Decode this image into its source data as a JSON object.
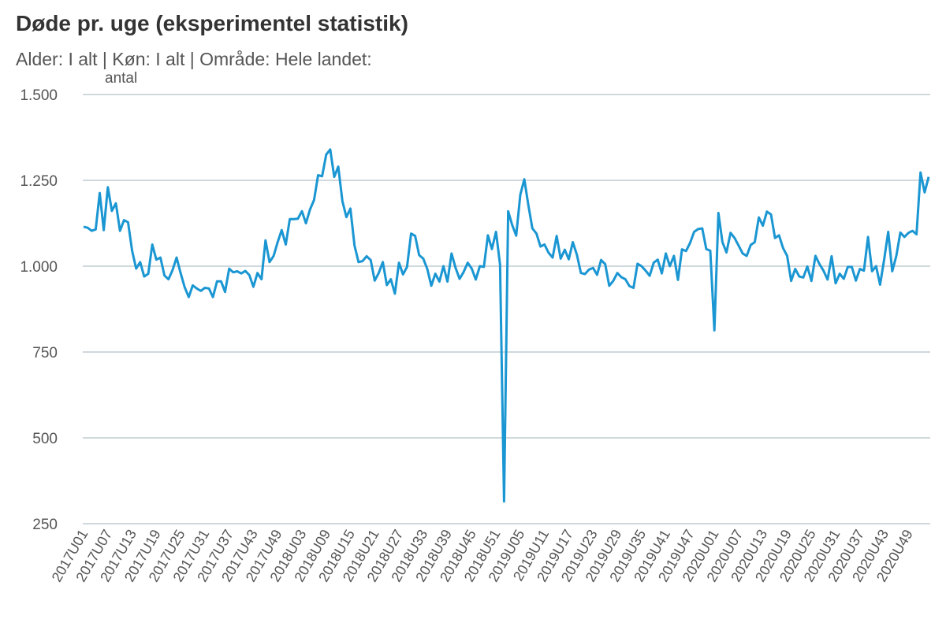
{
  "title": "Døde pr. uge (eksperimentel statistik)",
  "subtitle": "Alder: I alt | Køn: I alt | Område: Hele landet:",
  "colors": {
    "line": "#1a96d2",
    "grid": "#9fb0b8",
    "text": "#555555"
  },
  "chart_data": {
    "type": "line",
    "title": "Døde pr. uge (eksperimentel statistik)",
    "ylabel": "antal",
    "xlabel": "",
    "ylim": [
      250,
      1500
    ],
    "y_ticks": [
      1500,
      1250,
      1000,
      750,
      500,
      250
    ],
    "y_tick_labels": [
      "1.500",
      "1.250",
      "1.000",
      "750",
      "500",
      "250"
    ],
    "grid": true,
    "x_tick_labels": [
      "2017U01",
      "2017U07",
      "2017U13",
      "2017U19",
      "2017U25",
      "2017U31",
      "2017U37",
      "2017U43",
      "2017U49",
      "2018U03",
      "2018U09",
      "2018U15",
      "2018U21",
      "2018U27",
      "2018U33",
      "2018U39",
      "2018U45",
      "2018U51",
      "2019U05",
      "2019U11",
      "2019U17",
      "2019U23",
      "2019U29",
      "2019U35",
      "2019U41",
      "2019U47",
      "2020U01",
      "2020U07",
      "2020U13",
      "2020U19",
      "2020U25",
      "2020U31",
      "2020U37",
      "2020U43",
      "2020U49"
    ],
    "series": [
      {
        "values": [
          1115,
          1112,
          1103,
          1107,
          1213,
          1105,
          1230,
          1161,
          1183,
          1103,
          1134,
          1128,
          1045,
          993,
          1012,
          970,
          978,
          1063,
          1019,
          1025,
          973,
          962,
          988,
          1025,
          980,
          939,
          910,
          944,
          935,
          928,
          937,
          935,
          910,
          956,
          956,
          925,
          993,
          982,
          985,
          979,
          986,
          974,
          940,
          980,
          962,
          1075,
          1012,
          1030,
          1070,
          1105,
          1063,
          1137,
          1137,
          1138,
          1160,
          1125,
          1165,
          1193,
          1265,
          1262,
          1325,
          1340,
          1260,
          1290,
          1190,
          1143,
          1168,
          1060,
          1012,
          1015,
          1029,
          1018,
          958,
          980,
          1012,
          945,
          962,
          920,
          1010,
          976,
          998,
          1095,
          1088,
          1032,
          1022,
          992,
          943,
          978,
          955,
          1000,
          955,
          1037,
          995,
          963,
          983,
          1010,
          993,
          961,
          1000,
          998,
          1090,
          1050,
          1100,
          1005,
          315,
          1160,
          1120,
          1089,
          1208,
          1253,
          1178,
          1110,
          1095,
          1057,
          1063,
          1039,
          1025,
          1088,
          1022,
          1048,
          1020,
          1070,
          1033,
          980,
          977,
          990,
          995,
          975,
          1018,
          1006,
          943,
          957,
          980,
          968,
          962,
          942,
          937,
          1007,
          1000,
          987,
          972,
          1010,
          1019,
          979,
          1037,
          1000,
          1030,
          960,
          1049,
          1044,
          1068,
          1100,
          1108,
          1110,
          1050,
          1045,
          813,
          1155,
          1070,
          1040,
          1097,
          1082,
          1060,
          1037,
          1030,
          1062,
          1070,
          1142,
          1118,
          1159,
          1151,
          1082,
          1090,
          1053,
          1030,
          957,
          992,
          970,
          967,
          999,
          957,
          1030,
          1006,
          987,
          961,
          1029,
          950,
          978,
          963,
          998,
          998,
          958,
          992,
          987,
          1085,
          985,
          1000,
          946,
          1020,
          1100,
          985,
          1030,
          1098,
          1085,
          1097,
          1103,
          1093,
          1273,
          1215,
          1260
        ]
      }
    ]
  }
}
